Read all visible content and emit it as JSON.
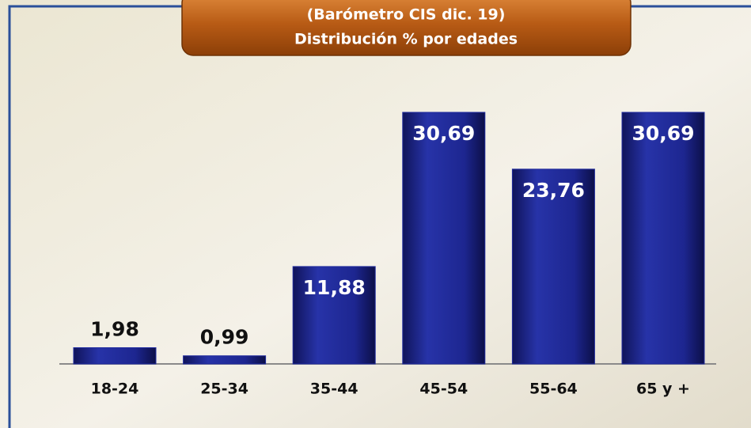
{
  "chart_data": {
    "type": "bar",
    "title": "(Barómetro CIS dic. 19)",
    "subtitle": "Distribución % por edades",
    "categories": [
      "18-24",
      "25-34",
      "35-44",
      "45-54",
      "55-64",
      "65 y +"
    ],
    "values": [
      1.98,
      0.99,
      11.88,
      30.69,
      23.76,
      30.69
    ],
    "value_labels": [
      "1,98",
      "0,99",
      "11,88",
      "30,69",
      "23,76",
      "30,69"
    ],
    "color": "#1f2a9e"
  }
}
